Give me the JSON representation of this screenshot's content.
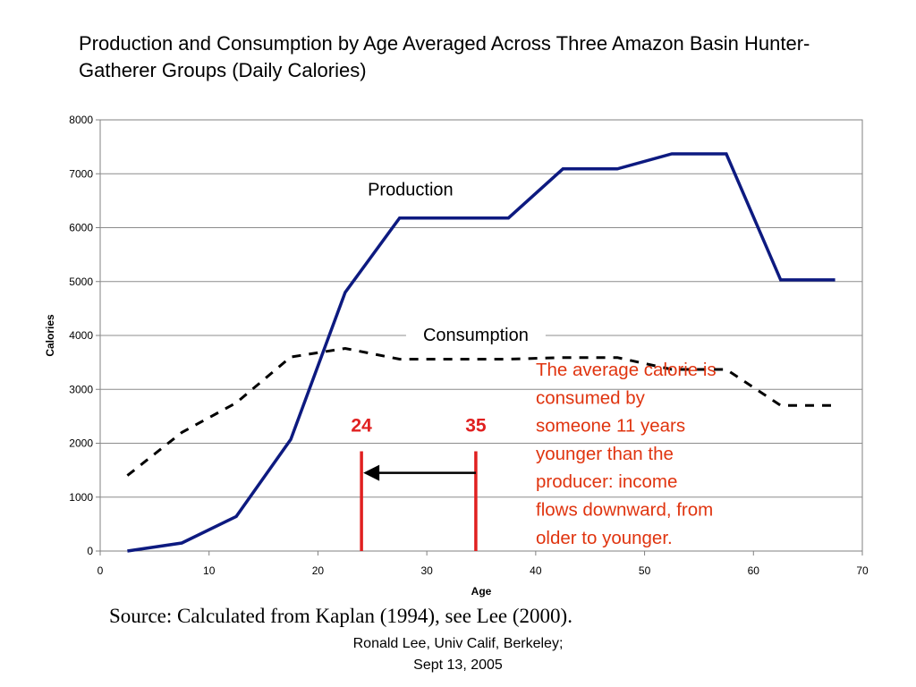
{
  "title": "Production and Consumption by Age Averaged Across Three Amazon Basin Hunter-Gatherer Groups (Daily Calories)",
  "source": "Source:  Calculated from Kaplan (1994), see Lee (2000).",
  "credit": {
    "line1": "Ronald Lee, Univ Calif, Berkeley;",
    "line2": "Sept 13, 2005"
  },
  "chart_data": {
    "type": "line",
    "title": "Production and Consumption by Age Averaged Across Three Amazon Basin Hunter-Gatherer Groups (Daily Calories)",
    "xlabel": "Age",
    "ylabel": "Calories",
    "xlim": [
      0,
      70
    ],
    "ylim": [
      0,
      8000
    ],
    "xticks": [
      0,
      10,
      20,
      30,
      40,
      50,
      60,
      70
    ],
    "yticks": [
      0,
      1000,
      2000,
      3000,
      4000,
      5000,
      6000,
      7000,
      8000
    ],
    "grid": true,
    "legend": "none",
    "series": [
      {
        "name": "Production",
        "style": "solid",
        "color": "#0d1a80",
        "x": [
          2.5,
          7.5,
          12.5,
          17.5,
          22.5,
          27.5,
          32.5,
          37.5,
          42.5,
          47.5,
          52.5,
          57.5,
          62.5,
          67.5
        ],
        "y": [
          0,
          150,
          640,
          2070,
          4800,
          6180,
          6180,
          6180,
          7090,
          7090,
          7370,
          7370,
          5030,
          5030
        ]
      },
      {
        "name": "Consumption",
        "style": "dashed",
        "color": "#000000",
        "x": [
          2.5,
          7.5,
          12.5,
          17.5,
          22.5,
          27.5,
          32.5,
          37.5,
          42.5,
          47.5,
          52.5,
          57.5,
          62.5,
          67.5
        ],
        "y": [
          1400,
          2200,
          2750,
          3600,
          3760,
          3560,
          3560,
          3560,
          3590,
          3590,
          3370,
          3370,
          2700,
          2700
        ]
      }
    ],
    "series_labels": [
      {
        "text": "Production",
        "x": 28.5,
        "y": 6600
      },
      {
        "text": "Consumption",
        "x": 34.5,
        "y": 3900
      }
    ],
    "markers": [
      {
        "label": "24",
        "x": 24,
        "y_from": 0,
        "y_to": 1850,
        "color": "#e02020"
      },
      {
        "label": "35",
        "x": 34.5,
        "y_from": 0,
        "y_to": 1850,
        "color": "#e02020"
      }
    ],
    "arrow": {
      "from_x": 34.5,
      "to_x": 24,
      "y": 1450,
      "color": "#000000"
    },
    "annotation": {
      "lines": [
        "The average calorie is",
        "consumed by",
        "someone 11 years",
        "younger than the",
        "producer: income",
        "flows downward, from",
        "older to younger."
      ],
      "color": "#e0340f"
    }
  }
}
